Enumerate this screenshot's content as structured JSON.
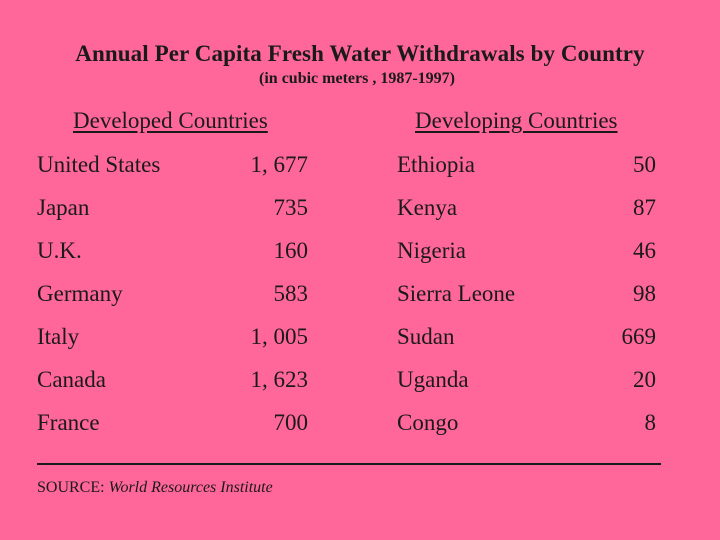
{
  "title": "Annual Per Capita Fresh Water Withdrawals by Country",
  "subtitle": "(in cubic meters , 1987-1997)",
  "headers": {
    "developed": "Developed Countries",
    "developing": "Developing Countries"
  },
  "rows": [
    {
      "dev_name": "United States",
      "dev_value": "1, 677",
      "devg_name": "Ethiopia",
      "devg_value": "50"
    },
    {
      "dev_name": "Japan",
      "dev_value": "735",
      "devg_name": "Kenya",
      "devg_value": "87"
    },
    {
      "dev_name": "U.K.",
      "dev_value": "160",
      "devg_name": "Nigeria",
      "devg_value": "46"
    },
    {
      "dev_name": "Germany",
      "dev_value": "583",
      "devg_name": "Sierra Leone",
      "devg_value": "98"
    },
    {
      "dev_name": "Italy",
      "dev_value": "1, 005",
      "devg_name": "Sudan",
      "devg_value": "669"
    },
    {
      "dev_name": "Canada",
      "dev_value": "1, 623",
      "devg_name": "Uganda",
      "devg_value": "20"
    },
    {
      "dev_name": "France",
      "dev_value": "700",
      "devg_name": "Congo",
      "devg_value": "8"
    }
  ],
  "source": {
    "label": "SOURCE:",
    "org": "World Resources Institute"
  },
  "colors": {
    "background": "#ff6699",
    "text": "#1a1a1a"
  }
}
